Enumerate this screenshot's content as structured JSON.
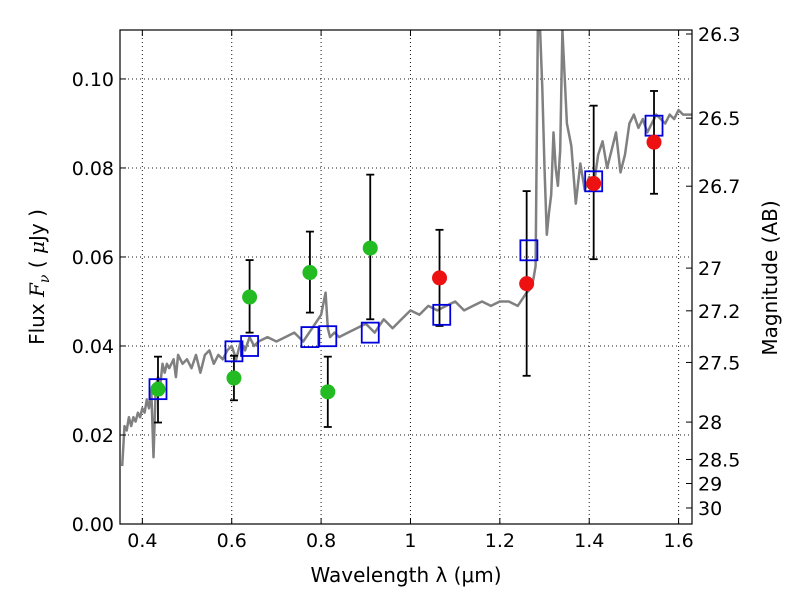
{
  "chart_data": {
    "type": "scatter",
    "title": "",
    "xlabel": "Wavelength  λ (μm)",
    "ylabel": "Flux  F_ν  ( μJy )",
    "ylabel_parts": {
      "prefix": "Flux  ",
      "symbol": "F",
      "subscript": "ν",
      "open": "  ( ",
      "mu": "μ",
      "unit": "Jy )"
    },
    "y2label": "Magnitude (AB)",
    "xlim": [
      0.35,
      1.63
    ],
    "ylim": [
      0.0,
      0.111
    ],
    "grid": true,
    "x_ticks": [
      {
        "value": 0.4,
        "label": "0.4"
      },
      {
        "value": 0.6,
        "label": "0.6"
      },
      {
        "value": 0.8,
        "label": "0.8"
      },
      {
        "value": 1.0,
        "label": "1"
      },
      {
        "value": 1.2,
        "label": "1.2"
      },
      {
        "value": 1.4,
        "label": "1.4"
      },
      {
        "value": 1.6,
        "label": "1.6"
      }
    ],
    "y_ticks": [
      {
        "value": 0.0,
        "label": "0.00"
      },
      {
        "value": 0.02,
        "label": "0.02"
      },
      {
        "value": 0.04,
        "label": "0.04"
      },
      {
        "value": 0.06,
        "label": "0.06"
      },
      {
        "value": 0.08,
        "label": "0.08"
      },
      {
        "value": 0.1,
        "label": "0.10"
      }
    ],
    "y2_ticks": [
      {
        "flux": 0.1101,
        "label": "26.3"
      },
      {
        "flux": 0.0912,
        "label": "26.5"
      },
      {
        "flux": 0.0759,
        "label": "26.7"
      },
      {
        "flux": 0.0575,
        "label": "27"
      },
      {
        "flux": 0.0479,
        "label": "27.2"
      },
      {
        "flux": 0.0363,
        "label": "27.5"
      },
      {
        "flux": 0.0229,
        "label": "28"
      },
      {
        "flux": 0.0145,
        "label": "28.5"
      },
      {
        "flux": 0.0091,
        "label": "29"
      },
      {
        "flux": 0.0036,
        "label": "30"
      }
    ],
    "colors": {
      "model": "#808080",
      "green": "#22bb22",
      "red": "#ee1111",
      "square": "#0000dd",
      "errorbar": "#000000"
    },
    "series": [
      {
        "type": "line",
        "color": "#808080",
        "x": [
          0.355,
          0.36,
          0.365,
          0.37,
          0.375,
          0.38,
          0.385,
          0.39,
          0.395,
          0.4,
          0.405,
          0.41,
          0.415,
          0.42,
          0.425,
          0.43,
          0.435,
          0.44,
          0.445,
          0.45,
          0.455,
          0.46,
          0.47,
          0.475,
          0.48,
          0.49,
          0.5,
          0.51,
          0.52,
          0.53,
          0.54,
          0.55,
          0.56,
          0.57,
          0.58,
          0.59,
          0.6,
          0.61,
          0.62,
          0.63,
          0.64,
          0.65,
          0.66,
          0.68,
          0.7,
          0.72,
          0.74,
          0.76,
          0.78,
          0.8,
          0.81,
          0.815,
          0.82,
          0.83,
          0.84,
          0.86,
          0.88,
          0.9,
          0.92,
          0.94,
          0.96,
          0.98,
          1.0,
          1.02,
          1.04,
          1.06,
          1.08,
          1.1,
          1.12,
          1.14,
          1.16,
          1.18,
          1.2,
          1.22,
          1.24,
          1.26,
          1.27,
          1.275,
          1.28,
          1.285,
          1.29,
          1.295,
          1.3,
          1.305,
          1.31,
          1.315,
          1.32,
          1.325,
          1.33,
          1.335,
          1.34,
          1.35,
          1.36,
          1.37,
          1.38,
          1.39,
          1.4,
          1.41,
          1.42,
          1.43,
          1.44,
          1.45,
          1.46,
          1.47,
          1.48,
          1.49,
          1.5,
          1.51,
          1.52,
          1.53,
          1.54,
          1.55,
          1.56,
          1.57,
          1.58,
          1.59,
          1.6,
          1.61,
          1.62,
          1.63
        ],
        "y": [
          0.013,
          0.022,
          0.021,
          0.024,
          0.022,
          0.024,
          0.023,
          0.025,
          0.024,
          0.026,
          0.025,
          0.028,
          0.026,
          0.03,
          0.015,
          0.031,
          0.033,
          0.031,
          0.036,
          0.034,
          0.036,
          0.035,
          0.037,
          0.033,
          0.038,
          0.036,
          0.037,
          0.035,
          0.038,
          0.034,
          0.038,
          0.039,
          0.036,
          0.038,
          0.037,
          0.039,
          0.04,
          0.037,
          0.041,
          0.039,
          0.042,
          0.04,
          0.041,
          0.042,
          0.041,
          0.042,
          0.043,
          0.041,
          0.044,
          0.047,
          0.052,
          0.044,
          0.042,
          0.043,
          0.042,
          0.043,
          0.044,
          0.045,
          0.043,
          0.046,
          0.044,
          0.046,
          0.048,
          0.047,
          0.049,
          0.048,
          0.049,
          0.05,
          0.048,
          0.049,
          0.05,
          0.049,
          0.05,
          0.05,
          0.049,
          0.052,
          0.053,
          0.055,
          0.058,
          0.111,
          0.111,
          0.098,
          0.08,
          0.065,
          0.07,
          0.074,
          0.088,
          0.08,
          0.076,
          0.084,
          0.111,
          0.09,
          0.085,
          0.072,
          0.081,
          0.075,
          0.078,
          0.076,
          0.083,
          0.086,
          0.08,
          0.084,
          0.088,
          0.079,
          0.083,
          0.09,
          0.092,
          0.089,
          0.091,
          0.088,
          0.09,
          0.092,
          0.091,
          0.09,
          0.092,
          0.091,
          0.093,
          0.092,
          0.092,
          0.092
        ]
      },
      {
        "type": "errorbar",
        "color": "#000000",
        "points": [
          {
            "x": 0.435,
            "y": 0.0303,
            "lo": 0.0228,
            "hi": 0.0376
          },
          {
            "x": 0.605,
            "y": 0.0328,
            "lo": 0.0278,
            "hi": 0.0378
          },
          {
            "x": 0.64,
            "y": 0.051,
            "lo": 0.043,
            "hi": 0.0593
          },
          {
            "x": 0.775,
            "y": 0.0565,
            "lo": 0.0475,
            "hi": 0.0657
          },
          {
            "x": 0.815,
            "y": 0.0297,
            "lo": 0.0218,
            "hi": 0.0376
          },
          {
            "x": 0.91,
            "y": 0.062,
            "lo": 0.046,
            "hi": 0.0785
          },
          {
            "x": 1.065,
            "y": 0.0553,
            "lo": 0.0445,
            "hi": 0.0661
          },
          {
            "x": 1.26,
            "y": 0.054,
            "lo": 0.0333,
            "hi": 0.0748
          },
          {
            "x": 1.41,
            "y": 0.0765,
            "lo": 0.0595,
            "hi": 0.094
          },
          {
            "x": 1.545,
            "y": 0.0858,
            "lo": 0.0742,
            "hi": 0.0973
          }
        ]
      },
      {
        "type": "scatter",
        "marker": "square",
        "color": "#0000dd",
        "x": [
          0.435,
          0.605,
          0.64,
          0.775,
          0.815,
          0.91,
          1.07,
          1.265,
          1.41,
          1.545
        ],
        "y": [
          0.0303,
          0.0388,
          0.04,
          0.042,
          0.0422,
          0.043,
          0.047,
          0.0615,
          0.077,
          0.0895
        ]
      },
      {
        "type": "scatter",
        "marker": "circle",
        "color": "#22bb22",
        "x": [
          0.435,
          0.605,
          0.64,
          0.775,
          0.815,
          0.91
        ],
        "y": [
          0.0303,
          0.0328,
          0.051,
          0.0565,
          0.0297,
          0.062
        ]
      },
      {
        "type": "scatter",
        "marker": "circle",
        "color": "#ee1111",
        "x": [
          1.065,
          1.26,
          1.41,
          1.545
        ],
        "y": [
          0.0553,
          0.054,
          0.0765,
          0.0858
        ]
      }
    ]
  }
}
